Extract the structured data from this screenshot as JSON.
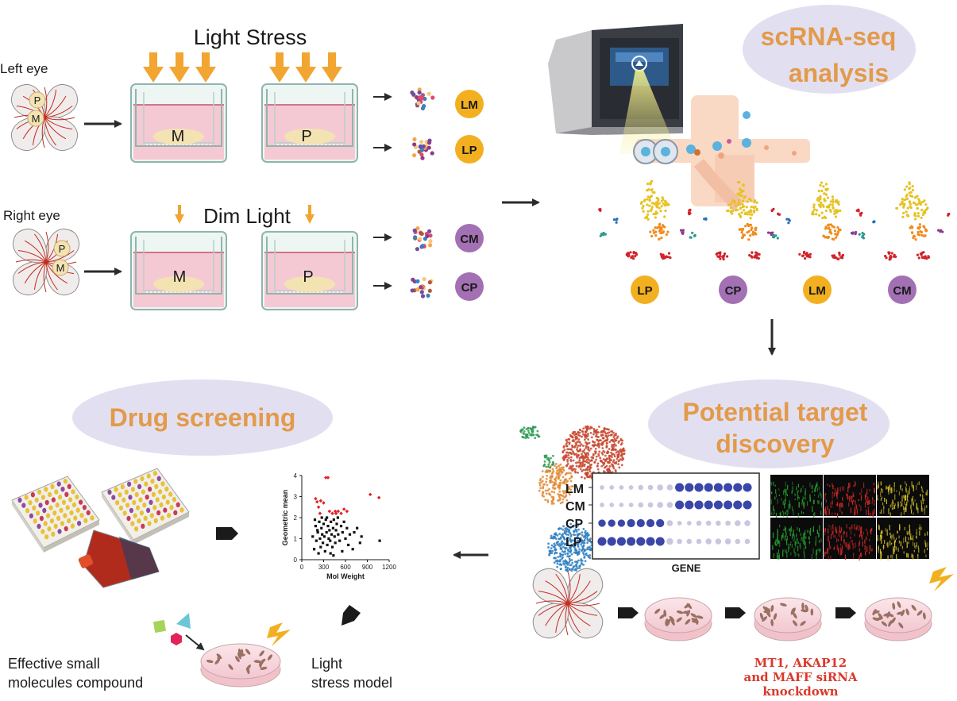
{
  "top": {
    "light_stress": "Light Stress",
    "dim_light": "Dim Light",
    "left_eye": "Left eye",
    "right_eye": "Right eye",
    "tissue_p": "P",
    "tissue_m": "M",
    "badges_top": [
      "LM",
      "LP",
      "CM",
      "CP"
    ]
  },
  "scrna": {
    "title_line1": "scRNA-seq",
    "title_line2": "analysis",
    "umap_labels": [
      "LP",
      "CP",
      "LM",
      "CM"
    ]
  },
  "target": {
    "title_line1": "Potential target",
    "title_line2": "discovery",
    "rows": [
      "LM",
      "CM",
      "CP",
      "LP"
    ],
    "x_label": "GENE",
    "knockdown_line1": "MT1, AKAP12",
    "knockdown_line2": "and MAFF siRNA",
    "knockdown_line3": "knockdown"
  },
  "drug": {
    "title": "Drug screening",
    "effective_line1": "Effective small",
    "effective_line2": "molecules compound",
    "model_line1": "Light",
    "model_line2": "stress model"
  },
  "chart_data": {
    "type": "scatter",
    "xlabel": "Mol Weight",
    "ylabel": "Geometric mean",
    "xlim": [
      0,
      1200
    ],
    "ylim": [
      0,
      4
    ],
    "xticks": [
      0,
      300,
      600,
      900,
      1200
    ],
    "yticks": [
      0,
      1,
      2,
      3,
      4
    ],
    "series": [
      {
        "color": "#e0232a",
        "points": [
          [
            190,
            2.9
          ],
          [
            230,
            2.5
          ],
          [
            260,
            2.8
          ],
          [
            300,
            2.7
          ],
          [
            330,
            3.9
          ],
          [
            360,
            3.9
          ],
          [
            380,
            2.3
          ],
          [
            420,
            2.2
          ],
          [
            460,
            2.3
          ],
          [
            500,
            2.3
          ],
          [
            540,
            2.2
          ],
          [
            580,
            2.4
          ],
          [
            620,
            2.3
          ],
          [
            940,
            3.1
          ],
          [
            1060,
            2.95
          ],
          [
            250,
            2.2
          ],
          [
            210,
            2.75
          ],
          [
            470,
            2.2
          ]
        ]
      },
      {
        "color": "#111111",
        "points": [
          [
            150,
            1.1
          ],
          [
            170,
            0.5
          ],
          [
            190,
            1.6
          ],
          [
            200,
            0.9
          ],
          [
            220,
            1.3
          ],
          [
            230,
            0.3
          ],
          [
            240,
            1.8
          ],
          [
            250,
            1.0
          ],
          [
            260,
            0.6
          ],
          [
            270,
            1.5
          ],
          [
            280,
            1.2
          ],
          [
            290,
            0.8
          ],
          [
            300,
            1.7
          ],
          [
            310,
            1.1
          ],
          [
            320,
            0.4
          ],
          [
            330,
            1.9
          ],
          [
            340,
            1.3
          ],
          [
            350,
            0.7
          ],
          [
            360,
            1.6
          ],
          [
            370,
            1.0
          ],
          [
            380,
            1.4
          ],
          [
            390,
            0.9
          ],
          [
            400,
            1.8
          ],
          [
            410,
            1.2
          ],
          [
            420,
            0.6
          ],
          [
            430,
            1.5
          ],
          [
            440,
            1.9
          ],
          [
            450,
            1.1
          ],
          [
            460,
            0.8
          ],
          [
            470,
            1.4
          ],
          [
            480,
            1.7
          ],
          [
            500,
            1.2
          ],
          [
            520,
            0.9
          ],
          [
            540,
            1.6
          ],
          [
            560,
            1.3
          ],
          [
            580,
            1.8
          ],
          [
            600,
            1.0
          ],
          [
            620,
            1.5
          ],
          [
            640,
            0.7
          ],
          [
            660,
            1.2
          ],
          [
            700,
            0.5
          ],
          [
            720,
            1.3
          ],
          [
            760,
            1.5
          ],
          [
            800,
            0.8
          ],
          [
            820,
            1.1
          ],
          [
            1070,
            0.9
          ],
          [
            180,
            1.9
          ],
          [
            215,
            1.4
          ],
          [
            275,
            2.0
          ],
          [
            345,
            2.0
          ],
          [
            395,
            0.3
          ],
          [
            435,
            0.2
          ],
          [
            495,
            2.0
          ],
          [
            555,
            0.4
          ]
        ]
      }
    ]
  }
}
